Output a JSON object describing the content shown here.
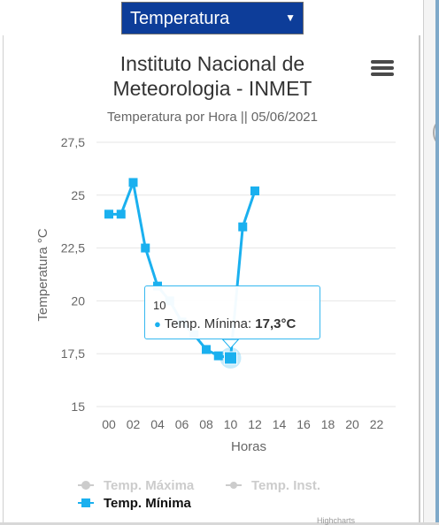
{
  "select": {
    "value": "Temperatura",
    "arrow": "▼"
  },
  "menu_icon": "hamburger-menu-icon",
  "colors": {
    "series": "#1ab0ef",
    "hidden": "#cccccc",
    "grid": "#e6e6e6",
    "select_bg": "#0d3d99"
  },
  "chart_data": {
    "type": "line",
    "title": "Instituto Nacional de Meteorologia - INMET",
    "subtitle": "Temperatura por Hora || 05/06/2021",
    "xlabel": "Horas",
    "ylabel": "Temperatura °C",
    "x_ticks": [
      "00",
      "02",
      "04",
      "06",
      "08",
      "10",
      "12",
      "14",
      "16",
      "18",
      "20",
      "22"
    ],
    "y_ticks": [
      "15",
      "17,5",
      "20",
      "22,5",
      "25",
      "27,5"
    ],
    "ylim": [
      15,
      27.5
    ],
    "xlim": [
      0,
      23
    ],
    "grid": true,
    "legend_position": "bottom-left",
    "series": [
      {
        "name": "Temp. Máxima",
        "visible": false,
        "values": []
      },
      {
        "name": "Temp. Inst.",
        "visible": false,
        "values": []
      },
      {
        "name": "Temp. Mínima",
        "visible": true,
        "x": [
          0,
          1,
          2,
          3,
          4,
          5,
          6,
          7,
          8,
          9,
          10,
          11,
          12
        ],
        "values": [
          24.1,
          24.1,
          25.6,
          22.5,
          20.7,
          20.0,
          19.0,
          18.4,
          17.7,
          17.4,
          17.3,
          23.5,
          25.2
        ]
      }
    ],
    "tooltip": {
      "x": "10",
      "series": "Temp. Mínima",
      "label": "Temp. Mínima: ",
      "value": "17,3°C"
    }
  },
  "credit": "Highcharts"
}
